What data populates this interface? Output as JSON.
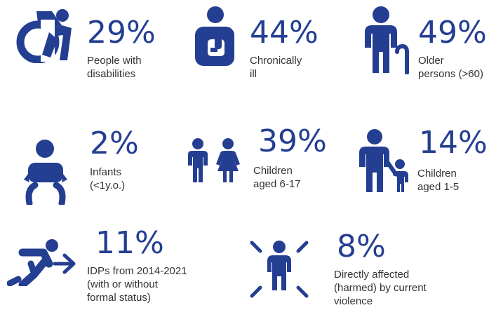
{
  "accent_color": "#243e92",
  "stats": [
    {
      "icon": "wheelchair-icon",
      "value": "29%",
      "label_lines": [
        "People with",
        "disabilities"
      ]
    },
    {
      "icon": "chronically-ill-person-icon",
      "value": "44%",
      "label_lines": [
        "Chronically",
        "ill"
      ]
    },
    {
      "icon": "older-person-with-cane-icon",
      "value": "49%",
      "label_lines": [
        "Older",
        "persons (>60)"
      ]
    },
    {
      "icon": "infant-icon",
      "value": "2%",
      "label_lines": [
        "Infants",
        "(<1y.o.)"
      ]
    },
    {
      "icon": "boy-and-girl-icon",
      "value": "39%",
      "label_lines": [
        "Children",
        "aged 6-17"
      ]
    },
    {
      "icon": "adult-holding-child-hand-icon",
      "value": "14%",
      "label_lines": [
        "Children",
        "aged 1-5"
      ]
    },
    {
      "icon": "displaced-person-running-icon",
      "value": "11%",
      "label_lines": [
        "IDPs from 2014-2021",
        "(with or without",
        "formal status)"
      ]
    },
    {
      "icon": "person-affected-by-violence-icon",
      "value": "8%",
      "label_lines": [
        "Directly affected",
        "(harmed) by current",
        "violence"
      ]
    }
  ]
}
